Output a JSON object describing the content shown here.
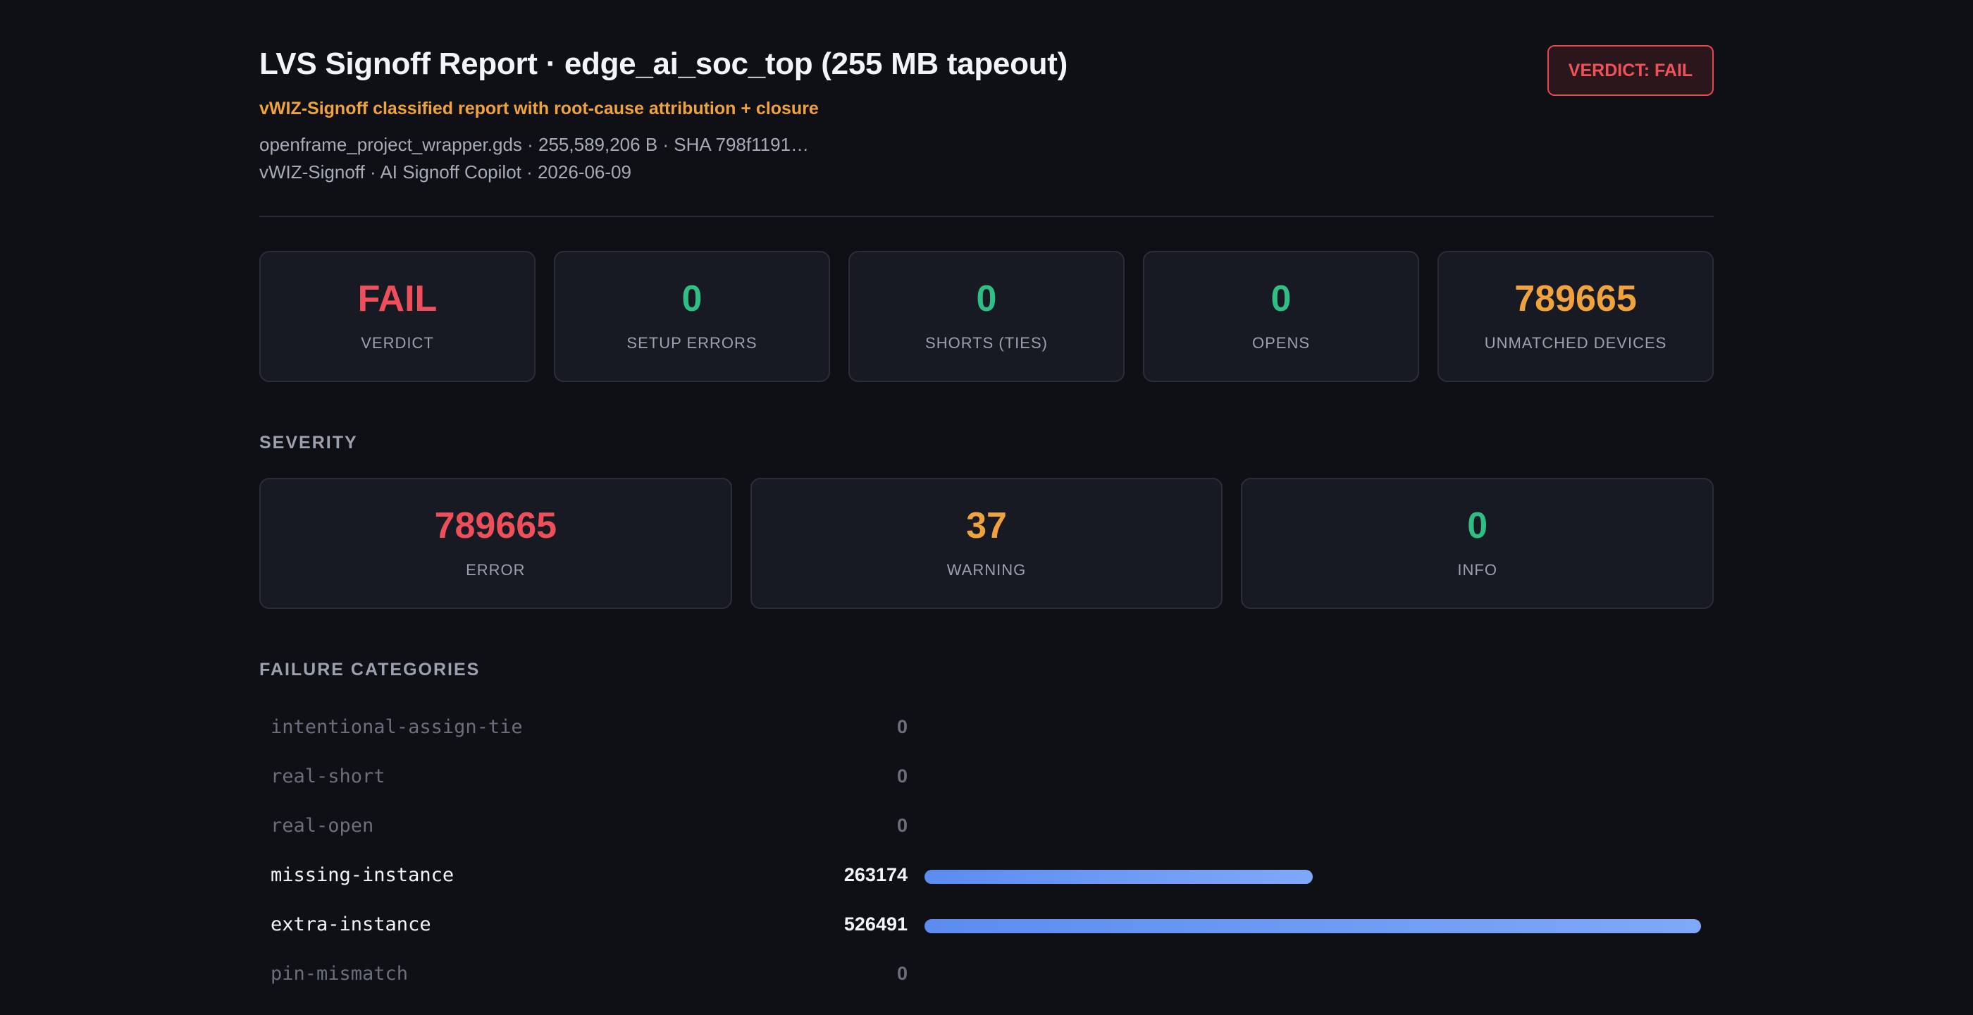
{
  "header": {
    "title": "LVS Signoff Report · edge_ai_soc_top (255 MB tapeout)",
    "subtitle": "vWIZ-Signoff classified report with root-cause attribution + closure",
    "meta_line1": "openframe_project_wrapper.gds · 255,589,206 B · SHA 798f1191…",
    "meta_line2": "vWIZ-Signoff · AI Signoff Copilot · 2026-06-09",
    "verdict_badge": "VERDICT: FAIL"
  },
  "summary": [
    {
      "value": "FAIL",
      "label": "VERDICT",
      "color": "#ef4f5a"
    },
    {
      "value": "0",
      "label": "SETUP ERRORS",
      "color": "#2fbf84"
    },
    {
      "value": "0",
      "label": "SHORTS (TIES)",
      "color": "#2fbf84"
    },
    {
      "value": "0",
      "label": "OPENS",
      "color": "#2fbf84"
    },
    {
      "value": "789665",
      "label": "UNMATCHED DEVICES",
      "color": "#f0a33c"
    }
  ],
  "severity": {
    "title": "SEVERITY",
    "items": [
      {
        "value": "789665",
        "label": "ERROR",
        "color": "#ef4f5a"
      },
      {
        "value": "37",
        "label": "WARNING",
        "color": "#f0a33c"
      },
      {
        "value": "0",
        "label": "INFO",
        "color": "#2fbf84"
      }
    ]
  },
  "categories": {
    "title": "FAILURE CATEGORIES",
    "items": [
      {
        "name": "intentional-assign-tie",
        "count": "0",
        "value": 0
      },
      {
        "name": "real-short",
        "count": "0",
        "value": 0
      },
      {
        "name": "real-open",
        "count": "0",
        "value": 0
      },
      {
        "name": "missing-instance",
        "count": "263174",
        "value": 263174
      },
      {
        "name": "extra-instance",
        "count": "526491",
        "value": 526491
      },
      {
        "name": "pin-mismatch",
        "count": "0",
        "value": 0
      }
    ]
  },
  "colors": {
    "fail": "#ef4f5a",
    "pass": "#2fbf84",
    "warning": "#f0a33c",
    "bar": "#5b8cf0"
  }
}
